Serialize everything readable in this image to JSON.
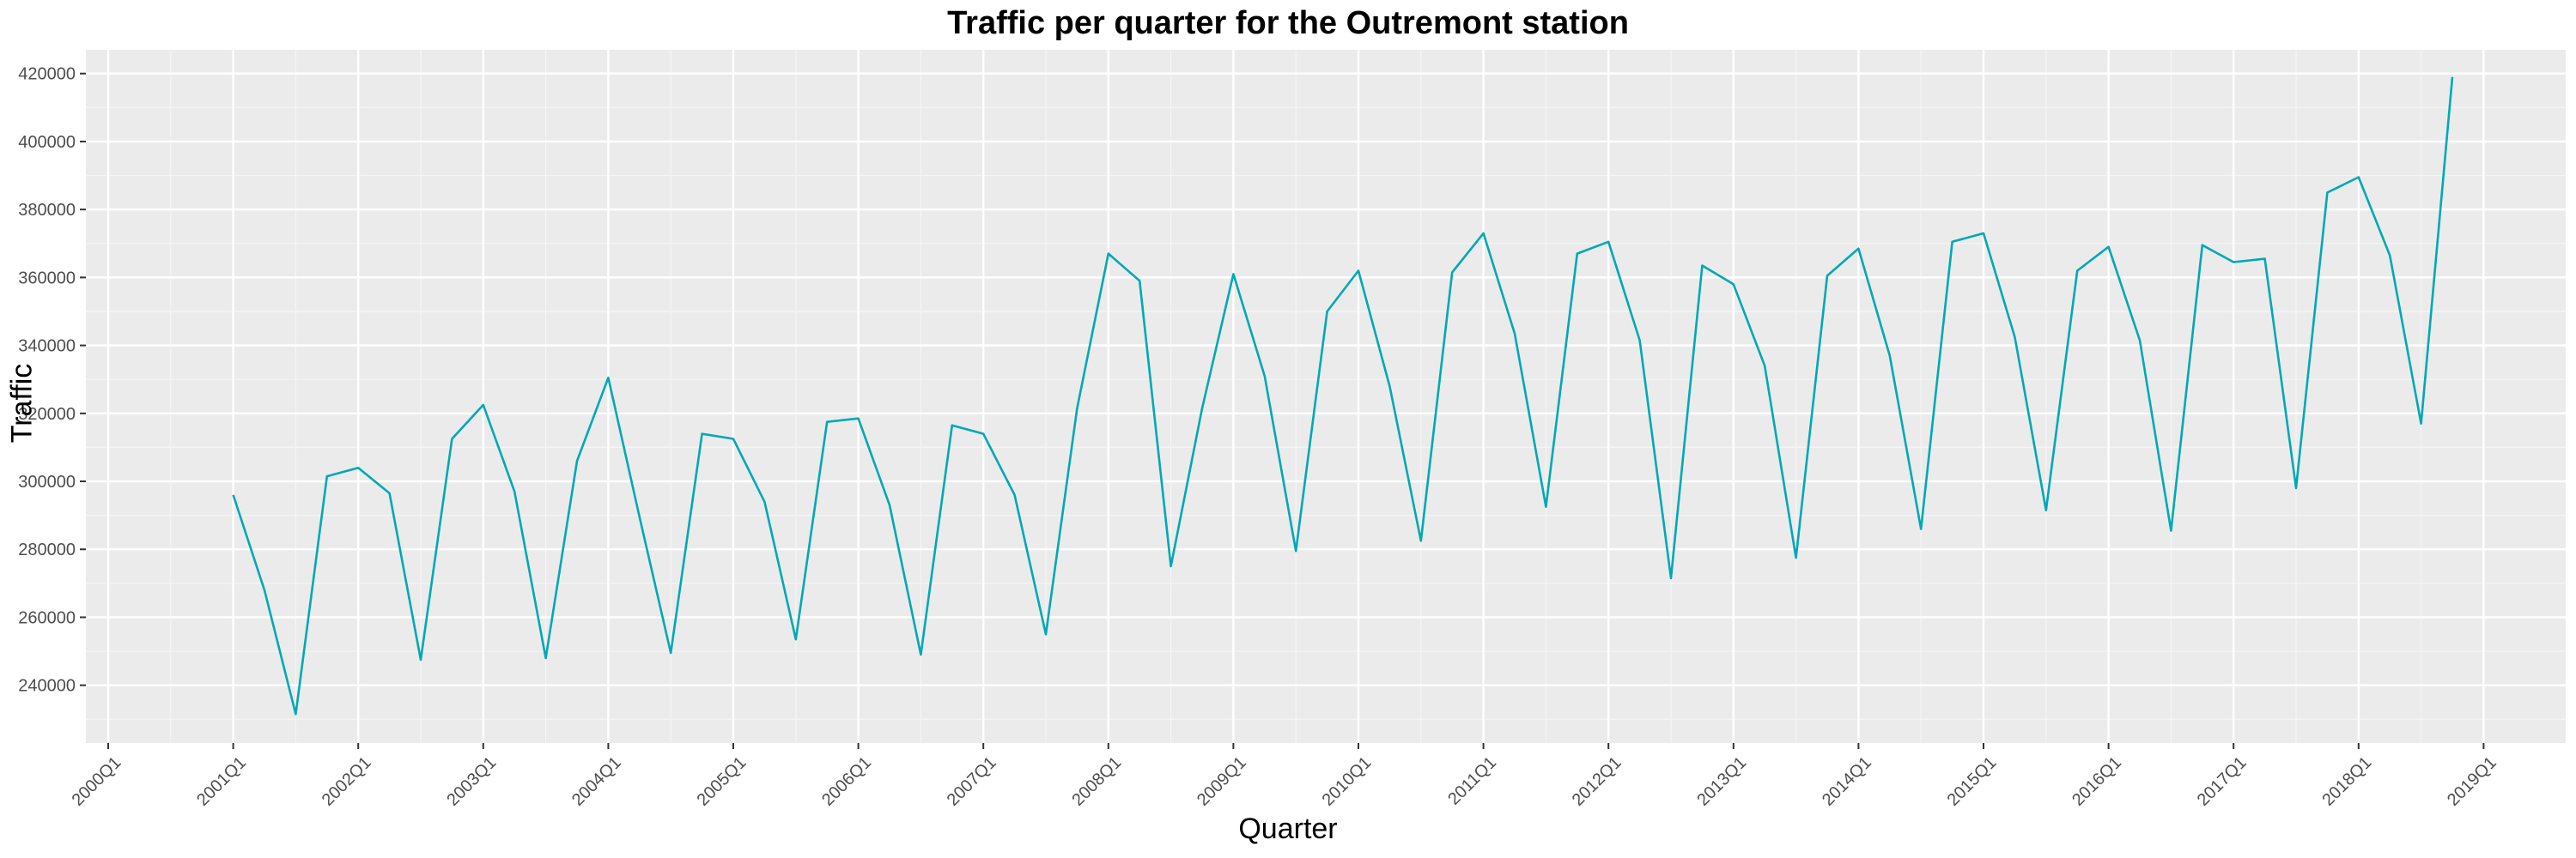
{
  "chart_data": {
    "type": "line",
    "title": "Traffic per quarter for the Outremont station",
    "xlabel": "Quarter",
    "ylabel": "Traffic",
    "x_ticks": [
      "2000Q1",
      "2001Q1",
      "2002Q1",
      "2003Q1",
      "2004Q1",
      "2005Q1",
      "2006Q1",
      "2007Q1",
      "2008Q1",
      "2009Q1",
      "2010Q1",
      "2011Q1",
      "2012Q1",
      "2013Q1",
      "2014Q1",
      "2015Q1",
      "2016Q1",
      "2017Q1",
      "2018Q1",
      "2019Q1"
    ],
    "y_ticks": [
      240000,
      260000,
      280000,
      300000,
      320000,
      340000,
      360000,
      380000,
      400000,
      420000
    ],
    "ylim": [
      223000,
      427000
    ],
    "grid": true,
    "color": "#00a8b5",
    "series": [
      {
        "x": [
          "2001Q1",
          "2001Q2",
          "2001Q3",
          "2001Q4",
          "2002Q1",
          "2002Q2",
          "2002Q3",
          "2002Q4",
          "2003Q1",
          "2003Q2",
          "2003Q3",
          "2003Q4",
          "2004Q1",
          "2004Q2",
          "2004Q3",
          "2004Q4",
          "2005Q1",
          "2005Q2",
          "2005Q3",
          "2005Q4",
          "2006Q1",
          "2006Q2",
          "2006Q3",
          "2006Q4",
          "2007Q1",
          "2007Q2",
          "2007Q3",
          "2007Q4",
          "2008Q1",
          "2008Q2",
          "2008Q3",
          "2008Q4",
          "2009Q1",
          "2009Q2",
          "2009Q3",
          "2009Q4",
          "2010Q1",
          "2010Q2",
          "2010Q3",
          "2010Q4",
          "2011Q1",
          "2011Q2",
          "2011Q3",
          "2011Q4",
          "2012Q1",
          "2012Q2",
          "2012Q3",
          "2012Q4",
          "2013Q1",
          "2013Q2",
          "2013Q3",
          "2013Q4",
          "2014Q1",
          "2014Q2",
          "2014Q3",
          "2014Q4",
          "2015Q1",
          "2015Q2",
          "2015Q3",
          "2015Q4",
          "2016Q1",
          "2016Q2",
          "2016Q3",
          "2016Q4",
          "2017Q1",
          "2017Q2",
          "2017Q3",
          "2017Q4",
          "2018Q1",
          "2018Q2",
          "2018Q3",
          "2018Q4"
        ],
        "values": [
          296000,
          268000,
          231500,
          301500,
          304000,
          296500,
          247500,
          312500,
          322500,
          297000,
          248000,
          306000,
          330500,
          289500,
          249500,
          314000,
          312500,
          294000,
          253500,
          317500,
          318500,
          293000,
          249000,
          316500,
          314000,
          296000,
          255000,
          321500,
          367000,
          359000,
          275000,
          321500,
          361000,
          331000,
          279500,
          350000,
          362000,
          328000,
          282500,
          361500,
          373000,
          343500,
          292500,
          367000,
          370500,
          341500,
          271500,
          363500,
          358000,
          334000,
          277500,
          360500,
          368500,
          337000,
          286000,
          370500,
          373000,
          342500,
          291500,
          362000,
          369000,
          341500,
          285500,
          369500,
          364500,
          365500,
          298000,
          385000,
          389500,
          366500,
          317000,
          419000
        ]
      }
    ]
  }
}
